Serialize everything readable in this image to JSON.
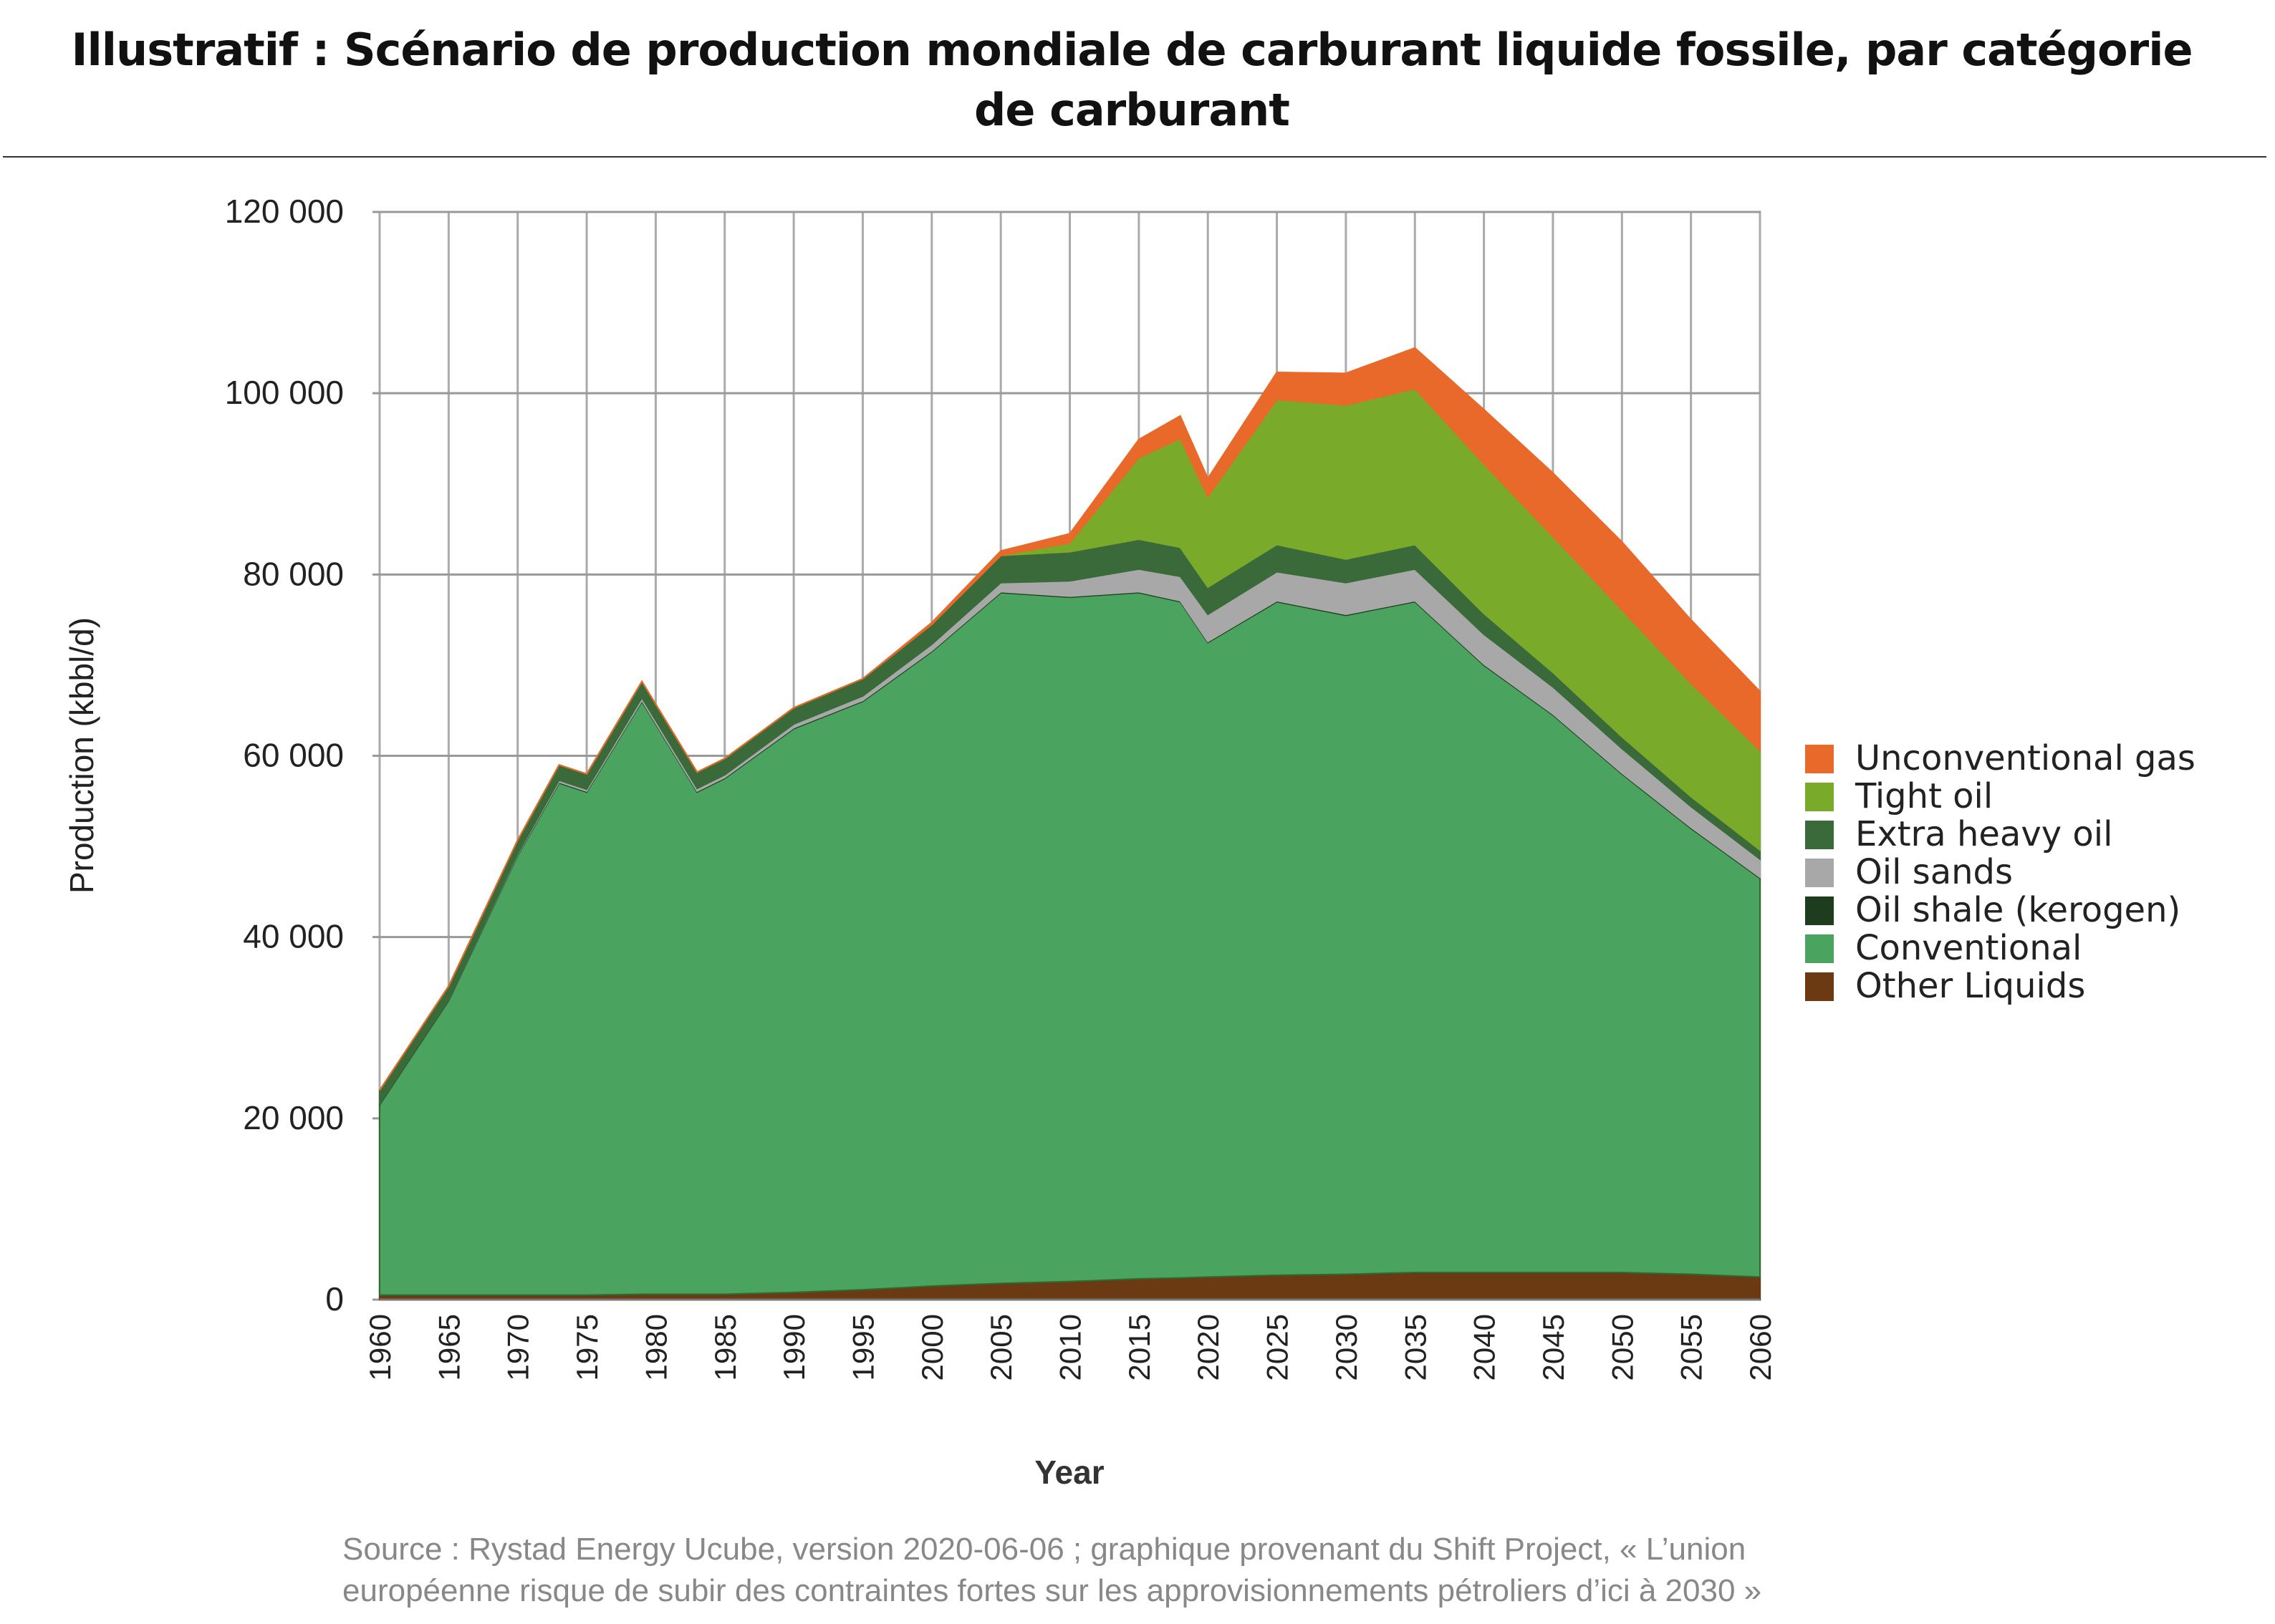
{
  "title": "Illustratif : Scénario de production mondiale de carburant liquide fossile, par catégorie de carburant",
  "source_line1": "Source : Rystad Energy Ucube, version 2020-06-06 ; graphique provenant du Shift Project, « L’union",
  "source_line2": "européenne risque de subir des contraintes fortes sur les approvisionnements pétroliers d’ici à 2030 »",
  "chart_data": {
    "type": "area",
    "stacked": true,
    "xlabel": "Year",
    "ylabel": "Production (kbbl/d)",
    "xlim": [
      1960,
      2060
    ],
    "ylim": [
      0,
      120000
    ],
    "grid": true,
    "legend_position": "right",
    "yticks": [
      "0",
      "20 000",
      "40 000",
      "60 000",
      "80 000",
      "100 000",
      "120 000"
    ],
    "ytick_values": [
      0,
      20000,
      40000,
      60000,
      80000,
      100000,
      120000
    ],
    "xticks": [
      "1960",
      "1965",
      "1970",
      "1975",
      "1980",
      "1985",
      "1990",
      "1995",
      "2000",
      "2005",
      "2010",
      "2015",
      "2020",
      "2025",
      "2030",
      "2035",
      "2040",
      "2045",
      "2050",
      "2055",
      "2060"
    ],
    "x": [
      1960,
      1965,
      1970,
      1973,
      1975,
      1979,
      1983,
      1985,
      1990,
      1995,
      2000,
      2005,
      2010,
      2015,
      2018,
      2020,
      2025,
      2030,
      2035,
      2040,
      2045,
      2050,
      2055,
      2060
    ],
    "series": [
      {
        "name": "Other Liquids",
        "color": "#6b3a12",
        "values": [
          500,
          500,
          500,
          500,
          500,
          600,
          600,
          600,
          800,
          1100,
          1500,
          1800,
          2000,
          2300,
          2400,
          2500,
          2700,
          2800,
          3000,
          3000,
          3000,
          3000,
          2800,
          2500
        ]
      },
      {
        "name": "Conventional",
        "color": "#4aa35e",
        "values": [
          21000,
          32500,
          48500,
          56500,
          55500,
          65400,
          55400,
          56900,
          62200,
          64900,
          70000,
          76200,
          75500,
          75700,
          74600,
          70000,
          74300,
          72700,
          74000,
          67000,
          61500,
          55000,
          49200,
          44000
        ]
      },
      {
        "name": "Oil shale (kerogen)",
        "color": "#1e3d1e",
        "values": [
          100,
          100,
          100,
          100,
          100,
          100,
          100,
          100,
          100,
          100,
          100,
          100,
          100,
          100,
          100,
          100,
          100,
          100,
          100,
          100,
          100,
          100,
          100,
          100
        ]
      },
      {
        "name": "Oil sands",
        "color": "#a8a8a8",
        "values": [
          0,
          0,
          100,
          200,
          200,
          300,
          300,
          300,
          400,
          500,
          700,
          1000,
          1700,
          2500,
          2700,
          3000,
          3200,
          3500,
          3500,
          3300,
          3000,
          2700,
          2300,
          2000
        ]
      },
      {
        "name": "Extra heavy oil",
        "color": "#3a6a3a",
        "values": [
          1500,
          1500,
          1500,
          1700,
          1700,
          1800,
          1800,
          1800,
          1800,
          1900,
          2200,
          3000,
          3200,
          3300,
          3200,
          3000,
          3000,
          2600,
          2700,
          2300,
          1600,
          1300,
          1100,
          1000
        ]
      },
      {
        "name": "Tight oil",
        "color": "#7aaa2a",
        "values": [
          0,
          0,
          0,
          0,
          0,
          0,
          0,
          0,
          0,
          0,
          0,
          0,
          1000,
          9000,
          12000,
          10000,
          16000,
          17000,
          17200,
          16500,
          15000,
          14000,
          12500,
          11000
        ]
      },
      {
        "name": "Unconventional gas",
        "color": "#e8692a",
        "values": [
          0,
          0,
          0,
          0,
          0,
          0,
          0,
          0,
          0,
          0,
          200,
          500,
          1000,
          2000,
          2500,
          2000,
          3000,
          3500,
          4500,
          6000,
          7000,
          7500,
          7000,
          6500
        ]
      }
    ]
  }
}
